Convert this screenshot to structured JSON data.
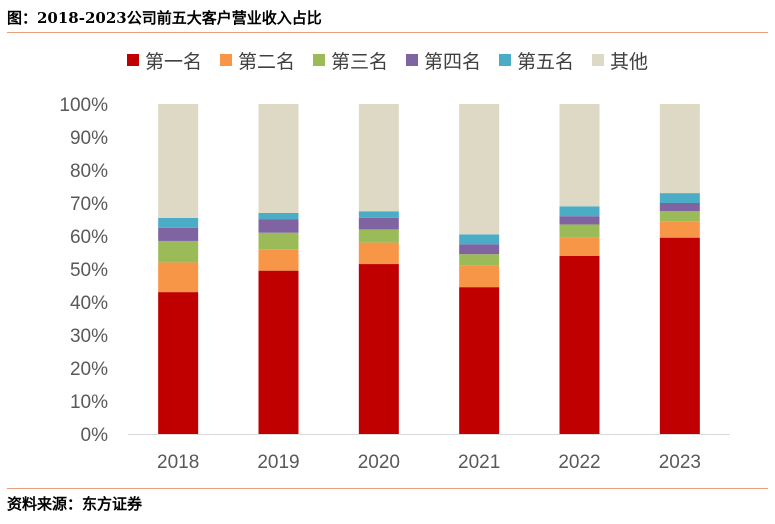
{
  "title": "图：2018-2023公司前五大客户营业收入占比",
  "source": "资料来源：东方证券",
  "chart_data": {
    "type": "bar",
    "stacked": true,
    "categories": [
      "2018",
      "2019",
      "2020",
      "2021",
      "2022",
      "2023"
    ],
    "series": [
      {
        "name": "第一名",
        "color": "#c00000",
        "values": [
          43,
          49.5,
          51.5,
          44.5,
          54,
          59.5
        ]
      },
      {
        "name": "第二名",
        "color": "#f79646",
        "values": [
          9,
          6.5,
          6.5,
          6.5,
          5.5,
          5
        ]
      },
      {
        "name": "第三名",
        "color": "#9bbb59",
        "values": [
          6.5,
          5,
          4,
          3.5,
          4,
          3
        ]
      },
      {
        "name": "第四名",
        "color": "#8064a2",
        "values": [
          4,
          4,
          3.5,
          3,
          2.5,
          2.5
        ]
      },
      {
        "name": "第五名",
        "color": "#4bacc6",
        "values": [
          3,
          2,
          2,
          3,
          3,
          3
        ]
      },
      {
        "name": "其他",
        "color": "#ddd9c4",
        "values": [
          34.5,
          33,
          32.5,
          39.5,
          31,
          27
        ]
      }
    ],
    "ylim": [
      0,
      100
    ],
    "yticks": [
      "0%",
      "10%",
      "20%",
      "30%",
      "40%",
      "50%",
      "60%",
      "70%",
      "80%",
      "90%",
      "100%"
    ],
    "legend_position": "top",
    "grid": false
  }
}
